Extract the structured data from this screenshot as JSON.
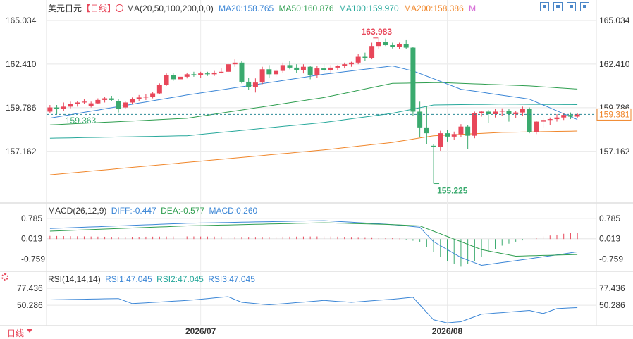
{
  "header": {
    "symbol": "美元日元",
    "period": "【日线】",
    "period_icon": "circle-minus-icon",
    "ma_label": "MA(20,50,100,200,0,0)",
    "ma20": "MA20:158.765",
    "ma50": "MA50:160.876",
    "ma100": "MA100:159.970",
    "ma200": "MA200:158.386",
    "ma_more": "M"
  },
  "macd_header": {
    "label": "MACD(26,12,9)",
    "diff": "DIFF:-0.447",
    "dea": "DEA:-0.577",
    "macd": "MACD:0.260"
  },
  "rsi_header": {
    "label": "RSI(14,14,14)",
    "rsi1": "RSI1:47.045",
    "rsi2": "RSI2:47.045",
    "rsi3": "RSI3:47.045"
  },
  "footer": {
    "period_label": "日线",
    "settings_icon": "gear-icon"
  },
  "toolbar_icons": [
    "crosshair-icon",
    "zoom-in-icon",
    "zoom-out-icon",
    "fullscreen-icon"
  ],
  "colors": {
    "up": "#e8475a",
    "down": "#3aaa6e",
    "ma20": "#3b86d6",
    "ma50": "#2e9e4f",
    "ma100": "#27a89b",
    "ma200": "#f0862a",
    "last_price_line": "#2a8a96",
    "grid": "#e6e6e6",
    "text": "#333333"
  },
  "chart_data": [
    {
      "type": "candlestick",
      "title": "美元日元",
      "x_labels": [
        "2026/07",
        "2026/08"
      ],
      "y_ticks": [
        165.034,
        162.41,
        159.786,
        157.162
      ],
      "ylim": [
        154.4,
        165.5
      ],
      "annotations": {
        "high": 163.983,
        "low": 155.225,
        "start_label": 159.363,
        "last_price": 159.381
      },
      "ohlc": [
        [
          159.55,
          159.95,
          159.45,
          159.8
        ],
        [
          159.8,
          159.95,
          159.4,
          159.7
        ],
        [
          159.7,
          160.1,
          159.6,
          159.85
        ],
        [
          159.85,
          160.15,
          159.75,
          160.0
        ],
        [
          160.0,
          160.2,
          159.85,
          160.1
        ],
        [
          160.1,
          160.3,
          160.0,
          160.15
        ],
        [
          159.9,
          160.15,
          159.8,
          160.05
        ],
        [
          160.05,
          160.35,
          160.0,
          160.25
        ],
        [
          160.25,
          160.45,
          160.1,
          160.35
        ],
        [
          160.35,
          160.5,
          160.2,
          160.25
        ],
        [
          160.2,
          160.3,
          159.5,
          159.7
        ],
        [
          159.8,
          160.2,
          159.7,
          160.1
        ],
        [
          160.1,
          160.4,
          160.0,
          160.3
        ],
        [
          160.3,
          160.55,
          160.2,
          160.4
        ],
        [
          160.4,
          160.6,
          160.25,
          160.45
        ],
        [
          160.45,
          160.75,
          160.35,
          160.65
        ],
        [
          160.65,
          161.25,
          160.6,
          161.15
        ],
        [
          161.15,
          161.85,
          161.1,
          161.75
        ],
        [
          161.75,
          161.9,
          161.4,
          161.5
        ],
        [
          161.5,
          161.75,
          161.35,
          161.65
        ],
        [
          161.65,
          161.9,
          161.55,
          161.8
        ],
        [
          161.8,
          161.95,
          161.65,
          161.75
        ],
        [
          161.75,
          161.95,
          161.6,
          161.85
        ],
        [
          161.85,
          161.95,
          161.7,
          161.8
        ],
        [
          161.8,
          162.0,
          161.7,
          161.9
        ],
        [
          161.9,
          162.15,
          161.85,
          161.95
        ],
        [
          161.95,
          162.45,
          161.9,
          162.4
        ],
        [
          162.4,
          162.7,
          162.25,
          162.5
        ],
        [
          162.5,
          162.6,
          161.25,
          161.35
        ],
        [
          161.35,
          161.6,
          160.85,
          161.05
        ],
        [
          161.05,
          161.55,
          160.7,
          161.3
        ],
        [
          161.3,
          162.25,
          161.2,
          162.1
        ],
        [
          162.1,
          162.35,
          161.6,
          161.8
        ],
        [
          161.8,
          162.1,
          161.65,
          162.0
        ],
        [
          162.0,
          162.5,
          161.9,
          162.35
        ],
        [
          162.35,
          162.6,
          162.1,
          162.2
        ],
        [
          162.2,
          162.4,
          161.9,
          162.05
        ],
        [
          162.05,
          162.4,
          161.85,
          162.25
        ],
        [
          162.25,
          162.3,
          161.5,
          161.75
        ],
        [
          161.75,
          162.3,
          161.6,
          162.15
        ],
        [
          162.15,
          162.4,
          161.95,
          162.05
        ],
        [
          162.05,
          162.35,
          161.9,
          162.2
        ],
        [
          162.2,
          162.35,
          162.05,
          162.3
        ],
        [
          162.3,
          162.5,
          162.15,
          162.4
        ],
        [
          162.4,
          162.55,
          162.25,
          162.5
        ],
        [
          162.5,
          163.0,
          162.4,
          162.85
        ],
        [
          162.85,
          163.1,
          162.6,
          162.75
        ],
        [
          162.75,
          163.7,
          162.7,
          163.5
        ],
        [
          163.5,
          163.983,
          163.3,
          163.75
        ],
        [
          163.75,
          163.95,
          163.5,
          163.55
        ],
        [
          163.55,
          163.7,
          163.35,
          163.45
        ],
        [
          163.45,
          163.7,
          163.3,
          163.6
        ],
        [
          163.6,
          163.85,
          163.3,
          163.4
        ],
        [
          163.4,
          163.45,
          159.3,
          159.55
        ],
        [
          159.55,
          160.15,
          158.0,
          158.6
        ],
        [
          158.6,
          159.9,
          157.6,
          158.25
        ],
        [
          157.5,
          157.6,
          155.225,
          157.45
        ],
        [
          157.45,
          158.4,
          157.2,
          158.25
        ],
        [
          158.25,
          158.45,
          157.75,
          158.05
        ],
        [
          158.05,
          158.35,
          157.85,
          158.2
        ],
        [
          158.2,
          158.8,
          158.0,
          158.65
        ],
        [
          158.65,
          158.75,
          157.3,
          158.1
        ],
        [
          158.1,
          159.55,
          157.95,
          159.45
        ],
        [
          159.45,
          159.6,
          159.25,
          159.55
        ],
        [
          159.55,
          159.65,
          158.85,
          159.4
        ],
        [
          159.4,
          159.7,
          159.2,
          159.55
        ],
        [
          159.55,
          159.75,
          159.3,
          159.6
        ],
        [
          159.6,
          159.7,
          158.95,
          159.4
        ],
        [
          159.4,
          159.6,
          159.15,
          159.5
        ],
        [
          159.5,
          159.85,
          159.3,
          159.7
        ],
        [
          159.7,
          159.8,
          158.25,
          158.3
        ],
        [
          158.3,
          159.0,
          158.2,
          158.95
        ],
        [
          158.95,
          159.2,
          158.6,
          159.05
        ],
        [
          159.05,
          159.2,
          158.75,
          159.1
        ],
        [
          159.1,
          159.4,
          158.95,
          159.2
        ],
        [
          159.2,
          159.45,
          159.05,
          159.35
        ],
        [
          159.35,
          159.5,
          159.1,
          159.25
        ],
        [
          159.25,
          159.45,
          159.15,
          159.381
        ]
      ],
      "ma": {
        "ma20": [
          [
            0,
            159.16
          ],
          [
            20,
            160.55
          ],
          [
            40,
            161.8
          ],
          [
            50,
            162.3
          ],
          [
            53,
            162.0
          ],
          [
            60,
            160.9
          ],
          [
            70,
            160.3
          ],
          [
            78,
            158.9
          ]
        ],
        "ma50": [
          [
            0,
            158.75
          ],
          [
            20,
            159.15
          ],
          [
            40,
            160.4
          ],
          [
            50,
            161.25
          ],
          [
            57,
            161.3
          ],
          [
            70,
            161.1
          ],
          [
            78,
            160.88
          ]
        ],
        "ma100": [
          [
            0,
            157.95
          ],
          [
            20,
            158.1
          ],
          [
            40,
            158.9
          ],
          [
            50,
            159.45
          ],
          [
            56,
            159.95
          ],
          [
            66,
            160.0
          ],
          [
            78,
            159.97
          ]
        ],
        "ma200": [
          [
            0,
            155.75
          ],
          [
            20,
            156.5
          ],
          [
            40,
            157.25
          ],
          [
            50,
            157.7
          ],
          [
            56,
            158.1
          ],
          [
            66,
            158.3
          ],
          [
            78,
            158.39
          ]
        ]
      }
    },
    {
      "type": "line+bar",
      "title": "MACD(26,12,9)",
      "y_ticks": [
        0.785,
        0.013,
        -0.759
      ],
      "ylim": [
        -1.2,
        1.05
      ],
      "diff": [
        [
          0,
          0.4
        ],
        [
          20,
          0.6
        ],
        [
          40,
          0.7
        ],
        [
          50,
          0.55
        ],
        [
          54,
          0.45
        ],
        [
          56,
          -0.1
        ],
        [
          60,
          -0.7
        ],
        [
          63,
          -1.0
        ],
        [
          70,
          -0.75
        ],
        [
          78,
          -0.45
        ]
      ],
      "dea": [
        [
          0,
          0.3
        ],
        [
          20,
          0.5
        ],
        [
          40,
          0.62
        ],
        [
          50,
          0.55
        ],
        [
          54,
          0.5
        ],
        [
          58,
          0.1
        ],
        [
          63,
          -0.4
        ],
        [
          68,
          -0.65
        ],
        [
          78,
          -0.58
        ]
      ],
      "histogram": [
        [
          0,
          0.12
        ],
        [
          10,
          0.08
        ],
        [
          20,
          0.1
        ],
        [
          30,
          0.08
        ],
        [
          40,
          0.1
        ],
        [
          50,
          0.05
        ],
        [
          54,
          -0.1
        ],
        [
          56,
          -0.5
        ],
        [
          58,
          -0.85
        ],
        [
          60,
          -1.05
        ],
        [
          62,
          -0.85
        ],
        [
          64,
          -0.5
        ],
        [
          66,
          -0.25
        ],
        [
          68,
          -0.1
        ],
        [
          70,
          0.0
        ],
        [
          72,
          0.1
        ],
        [
          75,
          0.2
        ],
        [
          78,
          0.26
        ]
      ]
    },
    {
      "type": "line",
      "title": "RSI(14,14,14)",
      "y_ticks": [
        77.436,
        50.286
      ],
      "ylim": [
        20,
        90
      ],
      "rsi": [
        [
          0,
          59
        ],
        [
          10,
          61
        ],
        [
          12,
          53
        ],
        [
          20,
          58
        ],
        [
          26,
          64
        ],
        [
          28,
          55
        ],
        [
          32,
          51
        ],
        [
          40,
          58
        ],
        [
          44,
          55
        ],
        [
          50,
          60
        ],
        [
          53,
          63
        ],
        [
          56,
          27
        ],
        [
          58,
          22
        ],
        [
          60,
          24
        ],
        [
          63,
          36
        ],
        [
          70,
          42
        ],
        [
          72,
          37
        ],
        [
          74,
          45
        ],
        [
          78,
          47.05
        ]
      ]
    }
  ]
}
